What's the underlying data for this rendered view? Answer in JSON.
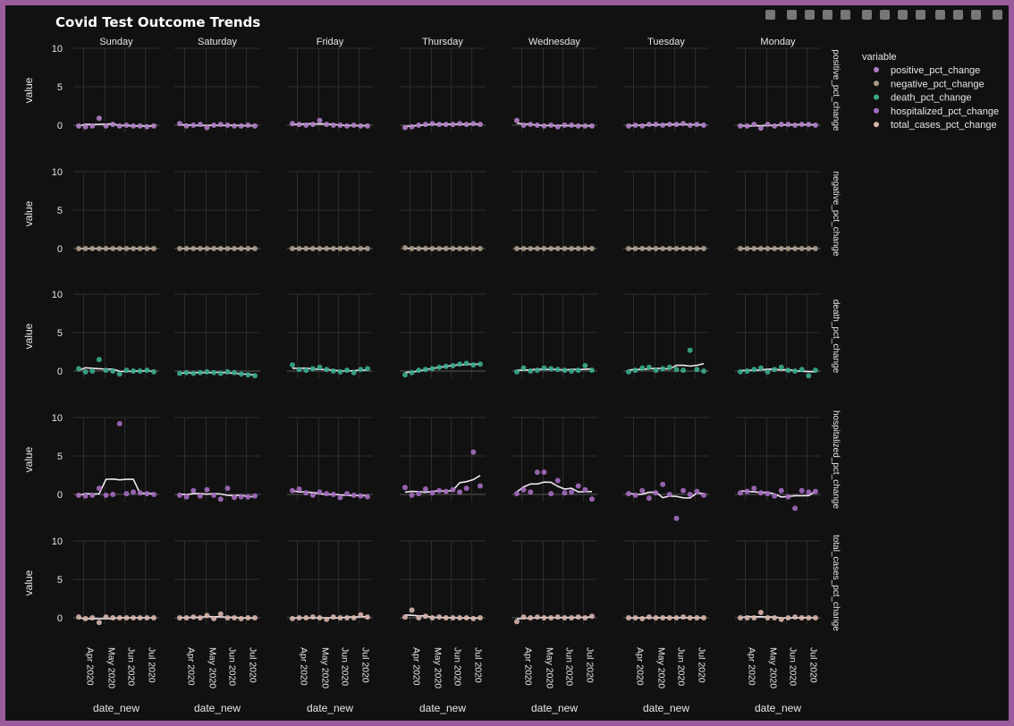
{
  "chart_data": {
    "type": "scatter",
    "title": "Covid Test Outcome Trends",
    "facet_columns": [
      "Sunday",
      "Saturday",
      "Friday",
      "Thursday",
      "Wednesday",
      "Tuesday",
      "Monday"
    ],
    "facet_rows": [
      "positive_pct_change",
      "negative_pct_change",
      "death_pct_change",
      "hospitalized_pct_change",
      "total_cases_pct_change"
    ],
    "ylabel": "value",
    "xlabel": "date_new",
    "ylim": [
      -3,
      10
    ],
    "yticks": [
      "0",
      "5",
      "10"
    ],
    "xticks": [
      "Apr 2020",
      "May 2020",
      "Jun 2020",
      "Jul 2020"
    ],
    "legend_title": "variable",
    "legend_placement": "top-right",
    "trendline": "lowess",
    "trendline_color": "#f0e6f2",
    "series": [
      {
        "name": "positive_pct_change",
        "color": "#b07fc7"
      },
      {
        "name": "negative_pct_change",
        "color": "#a89a88"
      },
      {
        "name": "death_pct_change",
        "color": "#3aab8c"
      },
      {
        "name": "hospitalized_pct_change",
        "color": "#a46cc0"
      },
      {
        "name": "total_cases_pct_change",
        "color": "#d6b4a8"
      }
    ],
    "points": {
      "positive_pct_change": [
        [
          -0.1,
          -0.2,
          -0.1,
          0.9,
          -0.1,
          0.1,
          -0.1,
          0.0,
          -0.1,
          -0.1,
          -0.2,
          -0.1
        ],
        [
          0.2,
          -0.1,
          0.0,
          0.1,
          -0.3,
          0.0,
          0.1,
          0.0,
          -0.1,
          -0.1,
          0.0,
          -0.1
        ],
        [
          0.2,
          0.1,
          0.0,
          0.1,
          0.6,
          0.1,
          0.0,
          0.0,
          -0.1,
          0.0,
          -0.1,
          -0.1
        ],
        [
          -0.3,
          -0.2,
          0.0,
          0.1,
          0.2,
          0.1,
          0.1,
          0.1,
          0.2,
          0.1,
          0.2,
          0.1
        ],
        [
          0.6,
          0.0,
          0.1,
          0.0,
          -0.1,
          0.0,
          -0.2,
          0.0,
          0.0,
          -0.1,
          -0.1,
          -0.1
        ],
        [
          -0.1,
          0.0,
          -0.1,
          0.1,
          0.1,
          0.0,
          0.1,
          0.1,
          0.2,
          0.0,
          0.1,
          0.0
        ],
        [
          -0.1,
          -0.1,
          0.1,
          -0.4,
          0.1,
          -0.1,
          0.1,
          0.1,
          0.0,
          0.1,
          0.1,
          0.0
        ]
      ],
      "negative_pct_change": [
        [
          0.0,
          0.0,
          0.0,
          0.0,
          0.0,
          0.0,
          0.0,
          0.0,
          0.0,
          0.0,
          0.0,
          0.0
        ],
        [
          0.0,
          0.0,
          0.0,
          0.0,
          0.0,
          0.0,
          0.0,
          0.0,
          0.0,
          0.0,
          0.0,
          0.0
        ],
        [
          0.0,
          0.0,
          0.0,
          0.0,
          0.0,
          0.0,
          0.0,
          0.0,
          0.0,
          0.0,
          0.0,
          0.0
        ],
        [
          0.1,
          0.0,
          0.0,
          0.0,
          0.0,
          0.0,
          0.0,
          0.0,
          0.0,
          0.0,
          0.0,
          0.0
        ],
        [
          0.0,
          0.0,
          0.0,
          0.0,
          0.0,
          0.0,
          0.0,
          0.0,
          0.0,
          0.0,
          0.0,
          0.0
        ],
        [
          0.0,
          0.0,
          0.0,
          0.0,
          0.0,
          0.0,
          0.0,
          0.0,
          0.0,
          0.0,
          0.0,
          0.0
        ],
        [
          0.0,
          0.0,
          0.0,
          0.0,
          0.0,
          0.0,
          0.0,
          0.0,
          0.0,
          0.0,
          0.0,
          0.0
        ]
      ],
      "death_pct_change": [
        [
          0.3,
          -0.1,
          0.0,
          1.5,
          0.1,
          0.0,
          -0.4,
          0.1,
          0.0,
          0.0,
          0.1,
          -0.1
        ],
        [
          -0.3,
          -0.2,
          -0.3,
          -0.2,
          -0.1,
          -0.2,
          -0.3,
          -0.1,
          -0.2,
          -0.4,
          -0.5,
          -0.6
        ],
        [
          0.8,
          0.2,
          0.1,
          0.3,
          0.5,
          0.2,
          0.0,
          -0.1,
          0.1,
          -0.2,
          0.2,
          0.3
        ],
        [
          -0.5,
          -0.2,
          0.1,
          0.2,
          0.3,
          0.5,
          0.6,
          0.7,
          0.9,
          1.0,
          0.8,
          0.9
        ],
        [
          -0.1,
          0.4,
          0.0,
          0.1,
          0.4,
          0.3,
          0.2,
          0.1,
          0.0,
          0.1,
          0.7,
          0.1
        ],
        [
          -0.1,
          0.1,
          0.4,
          0.5,
          0.1,
          0.3,
          0.5,
          0.2,
          0.1,
          2.7,
          0.2,
          0.0
        ],
        [
          -0.1,
          0.0,
          0.2,
          0.4,
          -0.1,
          0.2,
          0.5,
          0.1,
          0.0,
          0.2,
          -0.6,
          0.1
        ]
      ],
      "hospitalized_pct_change": [
        [
          -0.1,
          -0.2,
          -0.1,
          0.8,
          -0.1,
          0.0,
          9.2,
          0.1,
          0.3,
          0.2,
          0.1,
          0.0
        ],
        [
          -0.1,
          -0.3,
          0.5,
          -0.2,
          0.6,
          -0.1,
          -0.6,
          0.8,
          -0.4,
          -0.3,
          -0.3,
          -0.2
        ],
        [
          0.5,
          0.7,
          0.2,
          -0.1,
          0.3,
          0.1,
          0.0,
          -0.4,
          0.1,
          -0.1,
          -0.2,
          -0.3
        ],
        [
          0.9,
          -0.1,
          0.1,
          0.7,
          0.2,
          0.5,
          0.4,
          0.6,
          0.3,
          0.8,
          5.5,
          1.1
        ],
        [
          0.1,
          0.6,
          0.3,
          2.9,
          2.9,
          0.1,
          1.8,
          0.2,
          0.3,
          1.1,
          0.6,
          -0.6
        ],
        [
          0.1,
          -0.1,
          0.5,
          -0.5,
          0.2,
          1.3,
          0.0,
          -3.1,
          0.5,
          0.0,
          0.4,
          -0.1
        ],
        [
          0.2,
          0.4,
          0.8,
          0.2,
          0.1,
          -0.2,
          0.5,
          -0.3,
          -1.8,
          0.5,
          0.3,
          0.4
        ]
      ],
      "total_cases_pct_change": [
        [
          0.1,
          -0.1,
          0.0,
          -0.6,
          0.1,
          0.0,
          0.0,
          0.0,
          0.0,
          0.0,
          0.0,
          0.0
        ],
        [
          0.0,
          0.0,
          0.1,
          0.0,
          0.3,
          -0.1,
          0.5,
          0.0,
          0.0,
          -0.1,
          0.0,
          0.0
        ],
        [
          -0.1,
          0.0,
          0.0,
          0.1,
          0.0,
          -0.2,
          0.1,
          0.0,
          0.0,
          0.0,
          0.4,
          0.1
        ],
        [
          0.1,
          1.0,
          0.0,
          0.2,
          0.0,
          0.1,
          0.0,
          0.0,
          0.0,
          0.0,
          -0.1,
          0.0
        ],
        [
          -0.5,
          0.1,
          0.0,
          0.1,
          0.0,
          0.0,
          0.1,
          0.0,
          0.0,
          0.1,
          0.0,
          0.2
        ],
        [
          0.0,
          0.0,
          -0.1,
          0.1,
          0.0,
          0.0,
          0.0,
          0.0,
          0.1,
          0.0,
          0.0,
          0.0
        ],
        [
          0.0,
          0.0,
          0.0,
          0.7,
          0.0,
          0.0,
          -0.2,
          0.0,
          0.1,
          0.0,
          0.0,
          0.0
        ]
      ]
    }
  }
}
